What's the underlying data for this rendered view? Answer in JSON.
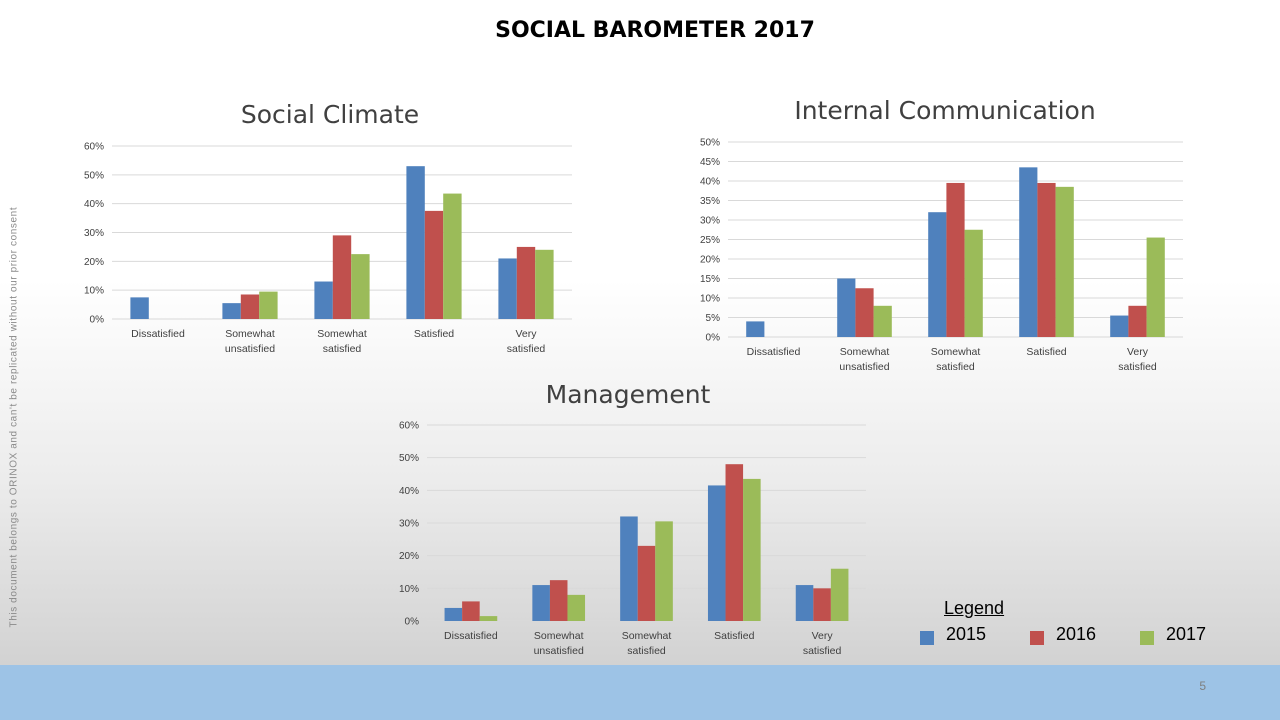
{
  "slide": {
    "title": "SOCIAL BAROMETER 2017",
    "side_note": "This document belongs to ORINOX and can't be replicated without our prior consent",
    "page_number": "5"
  },
  "colors": {
    "2015": "#4f81bd",
    "2016": "#c0504d",
    "2017": "#9bbb59"
  },
  "legend": {
    "title": "Legend",
    "items": [
      "2015",
      "2016",
      "2017"
    ]
  },
  "chart_data": [
    {
      "type": "bar",
      "title": "Social Climate",
      "categories": [
        "Dissatisfied",
        "Somewhat unsatisfied",
        "Somewhat satisfied",
        "Satisfied",
        "Very satisfied"
      ],
      "series": [
        {
          "name": "2015",
          "values": [
            7.5,
            5.5,
            13,
            53,
            21
          ]
        },
        {
          "name": "2016",
          "values": [
            0,
            8.5,
            29,
            37.5,
            25
          ]
        },
        {
          "name": "2017",
          "values": [
            0,
            9.5,
            22.5,
            43.5,
            24
          ]
        }
      ],
      "ylim": [
        0,
        60
      ],
      "yticks": [
        "0%",
        "10%",
        "20%",
        "30%",
        "40%",
        "50%",
        "60%"
      ]
    },
    {
      "type": "bar",
      "title": "Internal Communication",
      "categories": [
        "Dissatisfied",
        "Somewhat unsatisfied",
        "Somewhat satisfied",
        "Satisfied",
        "Very satisfied"
      ],
      "series": [
        {
          "name": "2015",
          "values": [
            4,
            15,
            32,
            43.5,
            5.5
          ]
        },
        {
          "name": "2016",
          "values": [
            0,
            12.5,
            39.5,
            39.5,
            8
          ]
        },
        {
          "name": "2017",
          "values": [
            0,
            8,
            27.5,
            38.5,
            25.5
          ]
        }
      ],
      "ylim": [
        0,
        50
      ],
      "yticks": [
        "0%",
        "5%",
        "10%",
        "15%",
        "20%",
        "25%",
        "30%",
        "35%",
        "40%",
        "45%",
        "50%"
      ]
    },
    {
      "type": "bar",
      "title": "Management",
      "categories": [
        "Dissatisfied",
        "Somewhat unsatisfied",
        "Somewhat satisfied",
        "Satisfied",
        "Very satisfied"
      ],
      "series": [
        {
          "name": "2015",
          "values": [
            4,
            11,
            32,
            41.5,
            11
          ]
        },
        {
          "name": "2016",
          "values": [
            6,
            12.5,
            23,
            48,
            10
          ]
        },
        {
          "name": "2017",
          "values": [
            1.5,
            8,
            30.5,
            43.5,
            16
          ]
        }
      ],
      "ylim": [
        0,
        60
      ],
      "yticks": [
        "0%",
        "10%",
        "20%",
        "30%",
        "40%",
        "50%",
        "60%"
      ]
    }
  ]
}
